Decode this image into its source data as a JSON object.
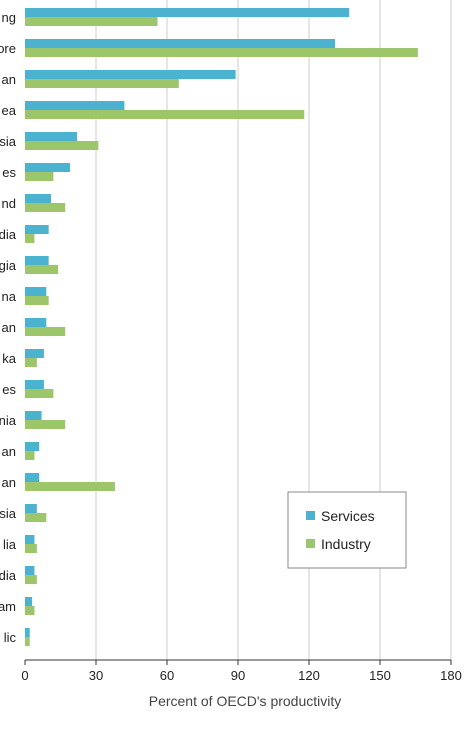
{
  "chart_data": {
    "type": "bar",
    "orientation": "horizontal",
    "categories": [
      "ng",
      "ore",
      "an",
      "ea",
      "sia",
      "es",
      "nd",
      "dia",
      "gia",
      "na",
      "an",
      "ka",
      "es",
      "nia",
      "an",
      "an",
      "sia",
      "lia",
      "dia",
      "am",
      "lic"
    ],
    "series": [
      {
        "name": "Services",
        "color": "#4bb3cf",
        "values": [
          137,
          131,
          89,
          42,
          22,
          19,
          11,
          10,
          10,
          9,
          9,
          8,
          8,
          7,
          6,
          6,
          5,
          4,
          4,
          3,
          2
        ]
      },
      {
        "name": "Industry",
        "color": "#9dc56a",
        "values": [
          56,
          166,
          65,
          118,
          31,
          12,
          17,
          4,
          14,
          10,
          17,
          5,
          12,
          17,
          4,
          38,
          9,
          5,
          5,
          4,
          2
        ]
      }
    ],
    "xlabel": "Percent of OECD's productivity",
    "ylabel": "",
    "xlim": [
      0,
      180
    ],
    "xticks": [
      0,
      30,
      60,
      90,
      120,
      150,
      180
    ],
    "grid": "vertical",
    "legend": "bottom-right"
  }
}
